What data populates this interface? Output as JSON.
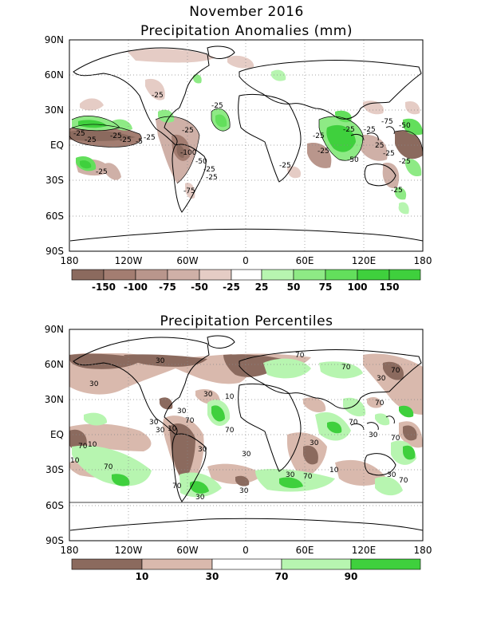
{
  "header": {
    "title": "November 2016"
  },
  "panel1": {
    "title": "Precipitation Anomalies (mm)",
    "lat_labels": [
      "90N",
      "60N",
      "30N",
      "EQ",
      "30S",
      "60S",
      "90S"
    ],
    "lon_labels": [
      "180",
      "120W",
      "60W",
      "0",
      "60E",
      "120E",
      "180"
    ],
    "legend": {
      "labels": [
        "-150",
        "-100",
        "-75",
        "-50",
        "-25",
        "25",
        "50",
        "75",
        "100",
        "150"
      ],
      "colors": [
        "#8b6a5e",
        "#a37d71",
        "#b9968c",
        "#cfb0a7",
        "#e5ccc5",
        "#ffffff",
        "#b7f5b0",
        "#8eea85",
        "#63df5c",
        "#3fd03d"
      ]
    },
    "contour_labels": [
      "-25",
      "-25",
      "-25",
      "-25",
      "-25",
      "-25",
      "-25",
      "-5",
      "-25",
      "-100",
      "-50",
      "-25",
      "-25",
      "-75",
      "-25",
      "-25",
      "-25",
      "-25",
      "-25",
      "-50",
      "-25",
      "25",
      "-25",
      "-75",
      "-50",
      "-25",
      "-25"
    ]
  },
  "panel2": {
    "title": "Precipitation Percentiles",
    "lat_labels": [
      "90N",
      "60N",
      "30N",
      "EQ",
      "30S",
      "60S",
      "90S"
    ],
    "lon_labels": [
      "180",
      "120W",
      "60W",
      "0",
      "60E",
      "120E",
      "180"
    ],
    "legend": {
      "labels": [
        "10",
        "30",
        "70",
        "90"
      ],
      "colors": [
        "#8b6a5e",
        "#d9b9ad",
        "#ffffff",
        "#b7f5b0",
        "#3fd03d"
      ]
    },
    "contour_labels": [
      "30",
      "30",
      "30",
      "10",
      "30",
      "30",
      "10",
      "70",
      "30",
      "70",
      "30",
      "30",
      "70",
      "70",
      "70",
      "70",
      "70",
      "30",
      "70",
      "30",
      "30",
      "70",
      "10",
      "30",
      "70",
      "30",
      "70",
      "70",
      "10",
      "30",
      "70",
      "10",
      "30"
    ]
  }
}
